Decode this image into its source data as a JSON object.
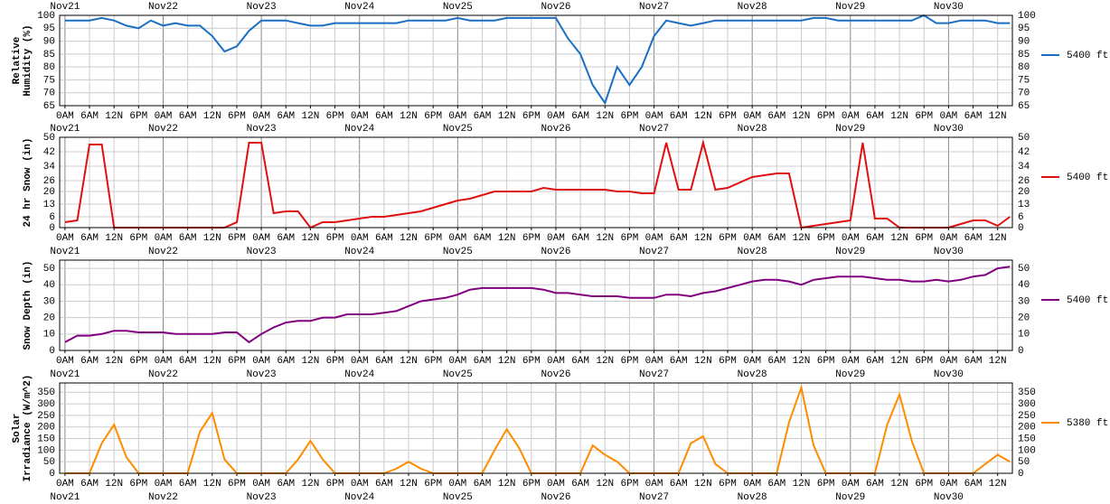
{
  "time_axis": {
    "xlim": [
      -1.3,
      231.6
    ],
    "x": [
      0,
      3,
      6,
      9,
      12,
      15,
      18,
      21,
      24,
      27,
      30,
      33,
      36,
      39,
      42,
      45,
      48,
      51,
      54,
      57,
      60,
      63,
      66,
      69,
      72,
      75,
      78,
      81,
      84,
      87,
      90,
      93,
      96,
      99,
      102,
      105,
      108,
      111,
      114,
      117,
      120,
      123,
      126,
      129,
      132,
      135,
      138,
      141,
      144,
      147,
      150,
      153,
      156,
      159,
      162,
      165,
      168,
      171,
      174,
      177,
      180,
      183,
      186,
      189,
      192,
      195,
      198,
      201,
      204,
      207,
      210,
      213,
      216,
      219,
      222,
      225,
      228,
      231
    ],
    "xticks": [
      {
        "value": 0,
        "label": "0AM"
      },
      {
        "value": 6,
        "label": "6AM"
      },
      {
        "value": 12,
        "label": "12N"
      },
      {
        "value": 18,
        "label": "6PM"
      },
      {
        "value": 24,
        "label": "0AM"
      },
      {
        "value": 30,
        "label": "6AM"
      },
      {
        "value": 36,
        "label": "12N"
      },
      {
        "value": 42,
        "label": "6PM"
      },
      {
        "value": 48,
        "label": "0AM"
      },
      {
        "value": 54,
        "label": "6AM"
      },
      {
        "value": 60,
        "label": "12N"
      },
      {
        "value": 66,
        "label": "6PM"
      },
      {
        "value": 72,
        "label": "0AM"
      },
      {
        "value": 78,
        "label": "6AM"
      },
      {
        "value": 84,
        "label": "12N"
      },
      {
        "value": 90,
        "label": "6PM"
      },
      {
        "value": 96,
        "label": "0AM"
      },
      {
        "value": 102,
        "label": "6AM"
      },
      {
        "value": 108,
        "label": "12N"
      },
      {
        "value": 114,
        "label": "6PM"
      },
      {
        "value": 120,
        "label": "0AM"
      },
      {
        "value": 126,
        "label": "6AM"
      },
      {
        "value": 132,
        "label": "12N"
      },
      {
        "value": 138,
        "label": "6PM"
      },
      {
        "value": 144,
        "label": "0AM"
      },
      {
        "value": 150,
        "label": "6AM"
      },
      {
        "value": 156,
        "label": "12N"
      },
      {
        "value": 162,
        "label": "6PM"
      },
      {
        "value": 168,
        "label": "0AM"
      },
      {
        "value": 174,
        "label": "6AM"
      },
      {
        "value": 180,
        "label": "12N"
      },
      {
        "value": 186,
        "label": "6PM"
      },
      {
        "value": 192,
        "label": "0AM"
      },
      {
        "value": 198,
        "label": "6AM"
      },
      {
        "value": 204,
        "label": "12N"
      },
      {
        "value": 210,
        "label": "6PM"
      },
      {
        "value": 216,
        "label": "0AM"
      },
      {
        "value": 222,
        "label": "6AM"
      },
      {
        "value": 228,
        "label": "12N"
      }
    ],
    "days": [
      {
        "value": 0,
        "label": "Nov21"
      },
      {
        "value": 24,
        "label": "Nov22"
      },
      {
        "value": 48,
        "label": "Nov23"
      },
      {
        "value": 72,
        "label": "Nov24"
      },
      {
        "value": 96,
        "label": "Nov25"
      },
      {
        "value": 120,
        "label": "Nov26"
      },
      {
        "value": 144,
        "label": "Nov27"
      },
      {
        "value": 168,
        "label": "Nov28"
      },
      {
        "value": 192,
        "label": "Nov29"
      },
      {
        "value": 216,
        "label": "Nov30"
      }
    ]
  },
  "chart_data": [
    {
      "type": "line",
      "ylabel": [
        "Relative",
        "Humidity (%)"
      ],
      "ylim": [
        65,
        100
      ],
      "yticks": [
        65,
        70,
        75,
        80,
        85,
        90,
        95,
        100
      ],
      "series": [
        {
          "name": "5400 ft",
          "color": "#1a6fc4",
          "values": [
            98,
            98,
            98,
            99,
            98,
            96,
            95,
            98,
            96,
            97,
            96,
            96,
            92,
            86,
            88,
            94,
            98,
            98,
            98,
            97,
            96,
            96,
            97,
            97,
            97,
            97,
            97,
            97,
            98,
            98,
            98,
            98,
            99,
            98,
            98,
            98,
            99,
            99,
            99,
            99,
            99,
            91,
            85,
            73,
            66,
            80,
            73,
            80,
            92,
            98,
            97,
            96,
            97,
            98,
            98,
            98,
            98,
            98,
            98,
            98,
            98,
            99,
            99,
            98,
            98,
            98,
            98,
            98,
            98,
            98,
            100,
            97,
            97,
            98,
            98,
            98,
            97,
            97
          ]
        }
      ]
    },
    {
      "type": "line",
      "ylabel": [
        "24 hr Snow (in)"
      ],
      "ylim": [
        0,
        50
      ],
      "yticks": [
        0,
        6,
        13,
        20,
        26,
        34,
        42,
        50
      ],
      "series": [
        {
          "name": "5400 ft",
          "color": "#e01010",
          "values": [
            3,
            4,
            46,
            46,
            0,
            0,
            0,
            0,
            0,
            0,
            0,
            0,
            0,
            0,
            3,
            47,
            47,
            8,
            9,
            9,
            0,
            3,
            3,
            4,
            5,
            6,
            6,
            7,
            8,
            9,
            11,
            13,
            15,
            16,
            18,
            20,
            20,
            20,
            20,
            22,
            21,
            21,
            21,
            21,
            21,
            20,
            20,
            19,
            19,
            47,
            21,
            21,
            47,
            21,
            22,
            25,
            28,
            29,
            30,
            30,
            0,
            1,
            2,
            3,
            4,
            47,
            5,
            5,
            0,
            0,
            0,
            0,
            0,
            2,
            4,
            4,
            1,
            6
          ]
        }
      ]
    },
    {
      "type": "line",
      "ylabel": [
        "Snow Depth (in)"
      ],
      "ylim": [
        0,
        55
      ],
      "yticks": [
        0,
        10,
        20,
        30,
        40,
        50
      ],
      "series": [
        {
          "name": "5400 ft",
          "color": "#800080",
          "values": [
            5,
            9,
            9,
            10,
            12,
            12,
            11,
            11,
            11,
            10,
            10,
            10,
            10,
            11,
            11,
            5,
            10,
            14,
            17,
            18,
            18,
            20,
            20,
            22,
            22,
            22,
            23,
            24,
            27,
            30,
            31,
            32,
            34,
            37,
            38,
            38,
            38,
            38,
            38,
            37,
            35,
            35,
            34,
            33,
            33,
            33,
            32,
            32,
            32,
            34,
            34,
            33,
            35,
            36,
            38,
            40,
            42,
            43,
            43,
            42,
            40,
            43,
            44,
            45,
            45,
            45,
            44,
            43,
            43,
            42,
            42,
            43,
            42,
            43,
            45,
            46,
            50,
            51
          ]
        }
      ]
    },
    {
      "type": "line",
      "ylabel": [
        "Solar",
        "Irradiance (W/m^2)"
      ],
      "ylim": [
        0,
        390
      ],
      "yticks": [
        0,
        50,
        100,
        150,
        200,
        250,
        300,
        350
      ],
      "series": [
        {
          "name": "5380 ft",
          "color": "#ff8c00",
          "values": [
            0,
            0,
            0,
            130,
            210,
            70,
            0,
            0,
            0,
            0,
            0,
            180,
            260,
            60,
            0,
            0,
            0,
            0,
            0,
            60,
            140,
            60,
            0,
            0,
            0,
            0,
            0,
            20,
            50,
            20,
            0,
            0,
            0,
            0,
            0,
            100,
            190,
            110,
            0,
            0,
            0,
            0,
            0,
            120,
            80,
            50,
            0,
            0,
            0,
            0,
            0,
            130,
            160,
            40,
            0,
            0,
            0,
            0,
            0,
            220,
            370,
            120,
            0,
            0,
            0,
            0,
            0,
            210,
            340,
            140,
            0,
            0,
            0,
            0,
            0,
            40,
            80,
            50
          ]
        }
      ]
    }
  ]
}
